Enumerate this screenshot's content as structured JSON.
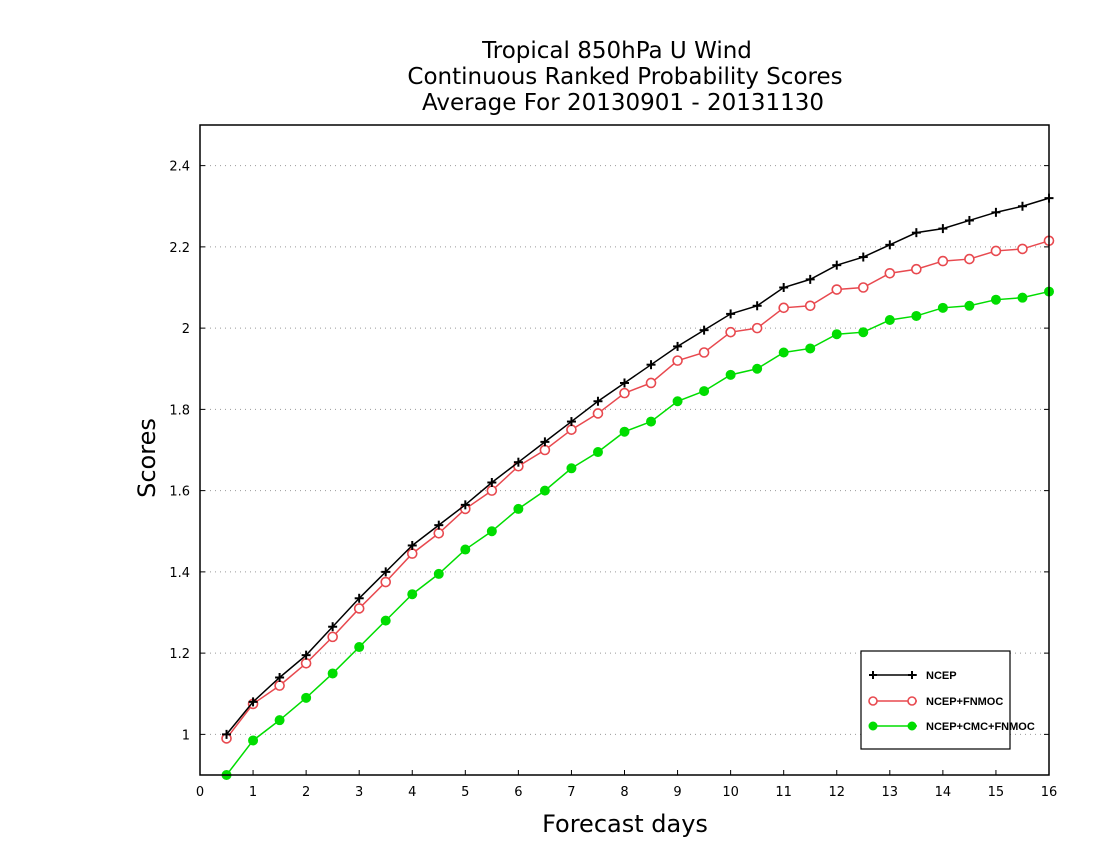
{
  "chart_data": {
    "type": "line",
    "title": [
      "Tropical 850hPa U Wind",
      "Continuous Ranked Probability Scores",
      "Average For 20130901 - 20131130"
    ],
    "xlabel": "Forecast days",
    "ylabel": "Scores",
    "xlim": [
      0,
      16
    ],
    "ylim": [
      0.9,
      2.5
    ],
    "xticks": [
      "0",
      "1",
      "2",
      "3",
      "4",
      "5",
      "6",
      "7",
      "8",
      "9",
      "10",
      "11",
      "12",
      "13",
      "14",
      "15",
      "16"
    ],
    "yticks": [
      "1",
      "1.2",
      "1.4",
      "1.6",
      "1.8",
      "2",
      "2.2",
      "2.4"
    ],
    "grid": "horizontal dotted",
    "legend_position": "bottom-right",
    "x": [
      0.5,
      1,
      1.5,
      2,
      2.5,
      3,
      3.5,
      4,
      4.5,
      5,
      5.5,
      6,
      6.5,
      7,
      7.5,
      8,
      8.5,
      9,
      9.5,
      10,
      10.5,
      11,
      11.5,
      12,
      12.5,
      13,
      13.5,
      14,
      14.5,
      15,
      15.5,
      16
    ],
    "series": [
      {
        "name": "NCEP",
        "color": "#000000",
        "marker": "plus",
        "values": [
          1.0,
          1.08,
          1.14,
          1.195,
          1.265,
          1.335,
          1.4,
          1.465,
          1.515,
          1.565,
          1.62,
          1.67,
          1.72,
          1.77,
          1.82,
          1.865,
          1.91,
          1.955,
          1.995,
          2.035,
          2.055,
          2.1,
          2.12,
          2.155,
          2.175,
          2.205,
          2.235,
          2.245,
          2.265,
          2.285,
          2.3,
          2.32
        ]
      },
      {
        "name": "NCEP+FNMOC",
        "color": "#e8494f",
        "marker": "open-circle",
        "values": [
          0.99,
          1.075,
          1.12,
          1.175,
          1.24,
          1.31,
          1.375,
          1.445,
          1.495,
          1.555,
          1.6,
          1.66,
          1.7,
          1.75,
          1.79,
          1.84,
          1.865,
          1.92,
          1.94,
          1.99,
          2.0,
          2.05,
          2.055,
          2.095,
          2.1,
          2.135,
          2.145,
          2.165,
          2.17,
          2.19,
          2.195,
          2.215
        ]
      },
      {
        "name": "NCEP+CMC+FNMOC",
        "color": "#00dd00",
        "marker": "filled-circle",
        "values": [
          0.9,
          0.985,
          1.035,
          1.09,
          1.15,
          1.215,
          1.28,
          1.345,
          1.395,
          1.455,
          1.5,
          1.555,
          1.6,
          1.655,
          1.695,
          1.745,
          1.77,
          1.82,
          1.845,
          1.885,
          1.9,
          1.94,
          1.95,
          1.985,
          1.99,
          2.02,
          2.03,
          2.05,
          2.055,
          2.07,
          2.075,
          2.09
        ]
      }
    ]
  }
}
